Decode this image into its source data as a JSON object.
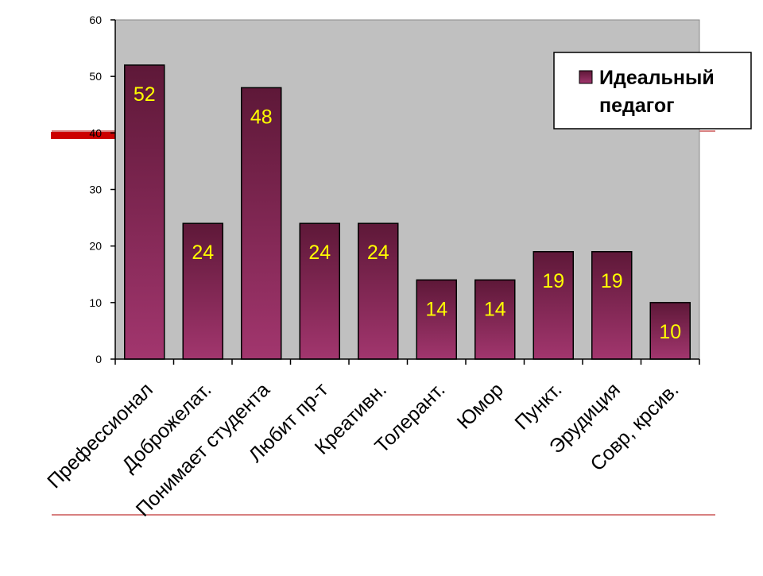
{
  "chart_data": {
    "type": "bar",
    "categories": [
      "Префессионал",
      "Доброжелат.",
      "Понимает студента",
      "Любит пр-т",
      "Креативн.",
      "Толерант.",
      "Юмор",
      "Пункт.",
      "Эрудиция",
      "Совр, крсив."
    ],
    "series": [
      {
        "name": "Идеальный педагог",
        "values": [
          52,
          24,
          48,
          24,
          24,
          14,
          14,
          19,
          19,
          10
        ],
        "color": "#8b2a5c"
      }
    ],
    "ylim": [
      0,
      60
    ],
    "yticks": [
      0,
      10,
      20,
      30,
      40,
      50,
      60
    ],
    "grid": false,
    "legend": "top-right",
    "plot_background": "#c0c0c0",
    "label_color": "#ffff00"
  },
  "legend": {
    "line1": "Идеальный",
    "line2": "педагог"
  }
}
